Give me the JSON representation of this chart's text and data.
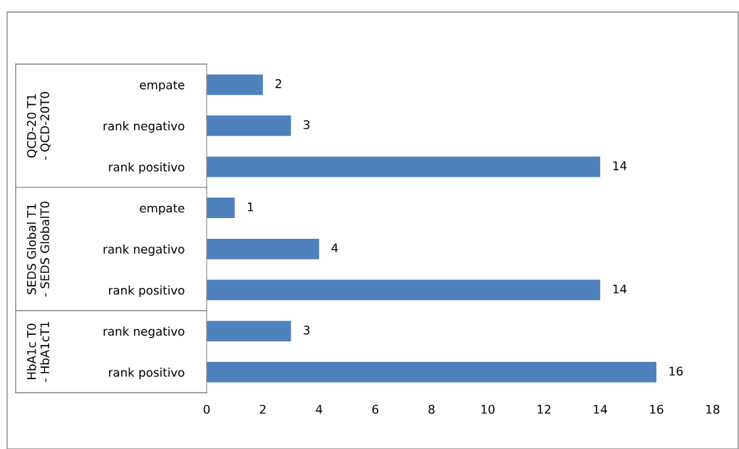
{
  "chart_data": [
    {
      "type": "bar",
      "orientation": "horizontal",
      "ylabel": "QCD-20 T1 - QCD-20T0",
      "categories": [
        "empate",
        "rank negativo",
        "rank positivo"
      ],
      "values": [
        2,
        3,
        14
      ],
      "color": "#4f81bd",
      "data_labels": true,
      "xlim": [
        0,
        18
      ],
      "xticks": [
        0,
        2,
        4,
        6,
        8,
        10,
        12,
        14,
        16,
        18
      ],
      "tick_labels": "y",
      "grid": false,
      "legend": false
    },
    {
      "type": "bar",
      "orientation": "horizontal",
      "ylabel": "SEDS Global T1 - SEDS GlobalT0",
      "categories": [
        "empate",
        "rank negativo",
        "rank positivo"
      ],
      "values": [
        1,
        4,
        14
      ],
      "color": "#4f81bd",
      "data_labels": true,
      "xlim": [
        0,
        18
      ],
      "xticks": [
        0,
        2,
        4,
        6,
        8,
        10,
        12,
        14,
        16,
        18
      ],
      "tick_labels": "y",
      "grid": false,
      "legend": false
    },
    {
      "type": "bar",
      "orientation": "horizontal",
      "ylabel": "HbA1c T0 - HbA1cT1",
      "categories": [
        "rank negativo",
        "rank positivo"
      ],
      "values": [
        3,
        16
      ],
      "color": "#4f81bd",
      "data_labels": true,
      "xlim": [
        0,
        18
      ],
      "xticks": [
        0,
        2,
        4,
        6,
        8,
        10,
        12,
        14,
        16,
        18
      ],
      "grid": false,
      "legend": false
    }
  ]
}
